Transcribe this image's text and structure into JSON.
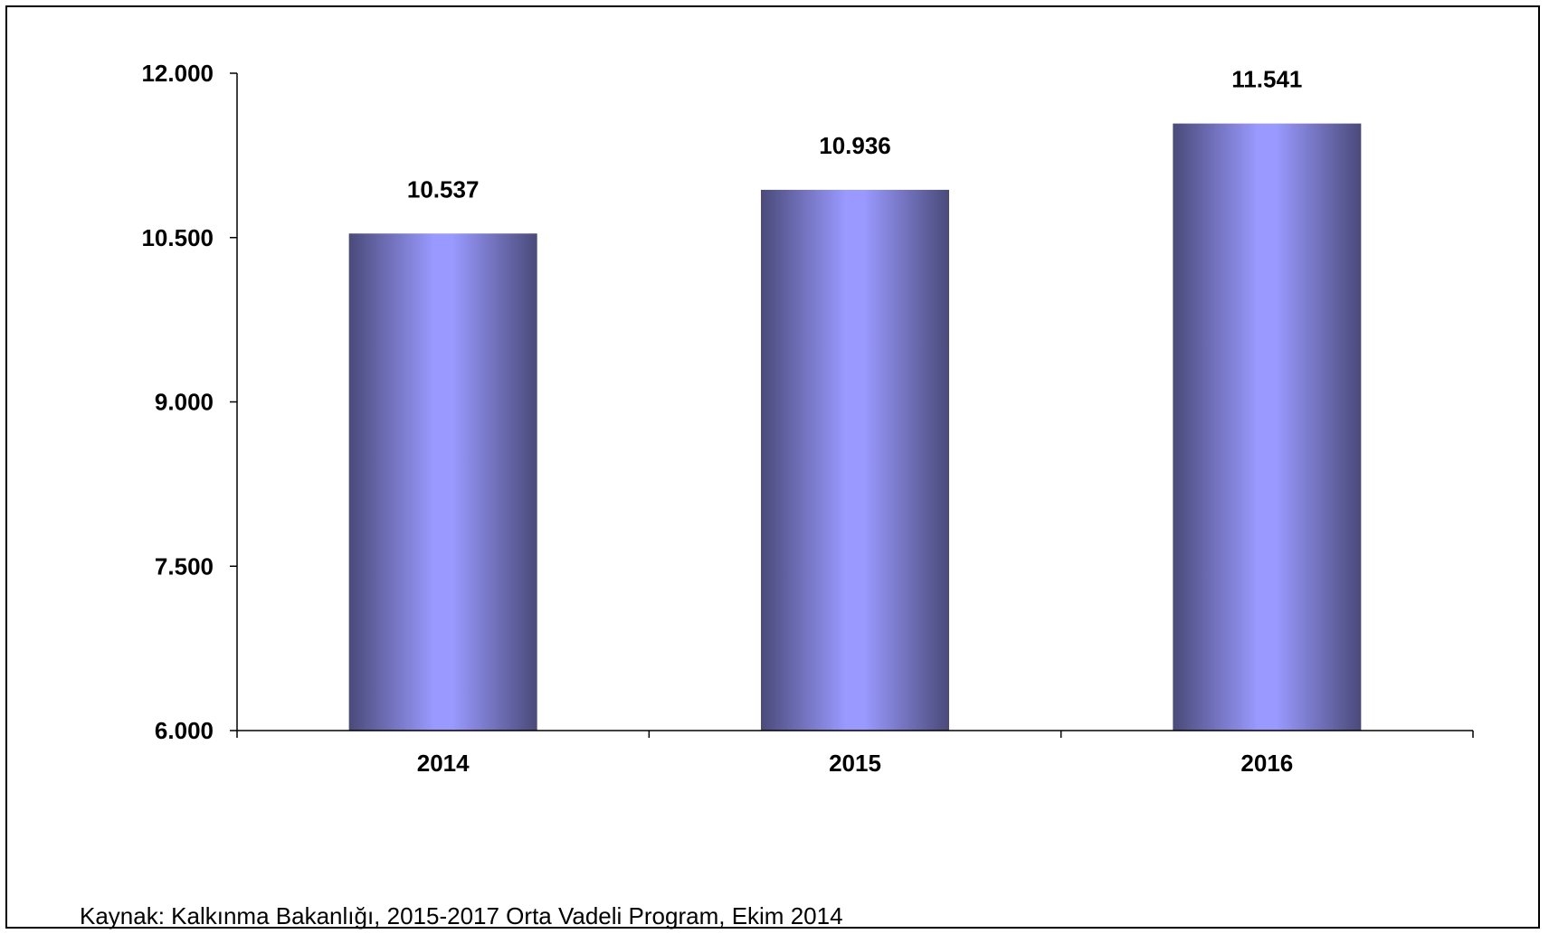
{
  "chart_data": {
    "type": "bar",
    "categories": [
      "2014",
      "2015",
      "2016"
    ],
    "values": [
      10537,
      10936,
      11541
    ],
    "value_labels": [
      "10.537",
      "10.936",
      "11.541"
    ],
    "ylim": [
      6000,
      12000
    ],
    "yticks": [
      6000,
      7500,
      9000,
      10500,
      12000
    ],
    "ytick_labels": [
      "6.000",
      "7.500",
      "9.000",
      "10.500",
      "12.000"
    ],
    "grid": false,
    "legend": "none",
    "bar_colors": {
      "edge": "#4a4a7a",
      "center": "#9999ff"
    }
  },
  "footer": {
    "source": "Kaynak: Kalkınma Bakanlığı, 2015-2017 Orta Vadeli Program, Ekim 2014"
  }
}
